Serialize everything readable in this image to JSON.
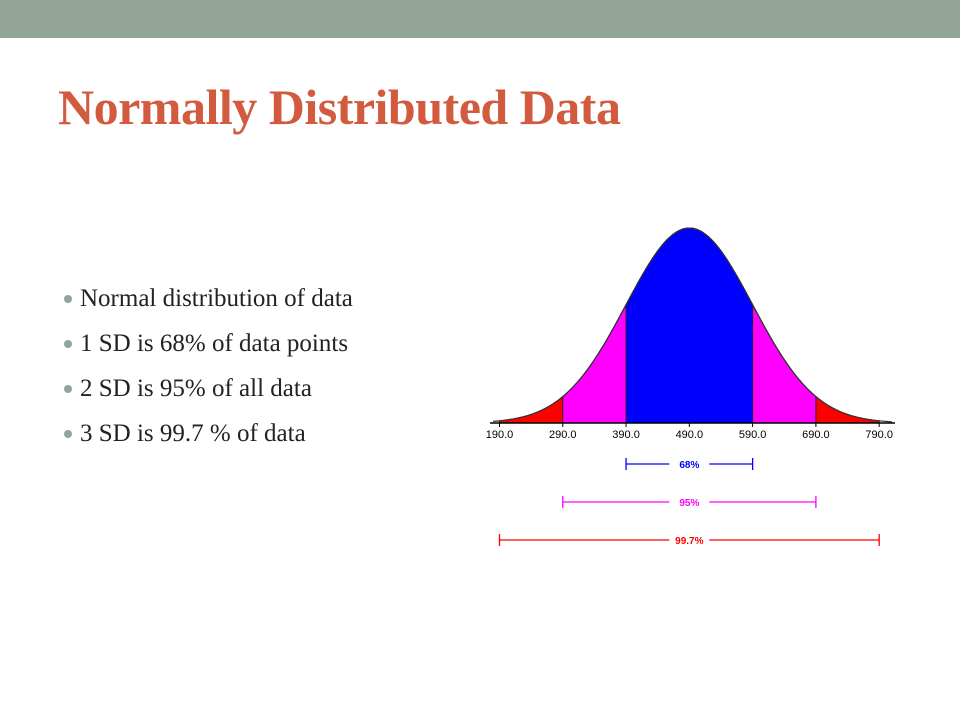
{
  "slide": {
    "title": "Normally Distributed Data",
    "bullets": [
      "Normal distribution of data",
      "1 SD is 68% of data points",
      "2 SD is 95% of all data",
      "3 SD is 99.7 % of data"
    ]
  },
  "chart_data": {
    "type": "normal",
    "xlim": [
      175,
      815
    ],
    "xticks": [
      {
        "value": 190,
        "label": "190.0"
      },
      {
        "value": 290,
        "label": "290.0"
      },
      {
        "value": 390,
        "label": "390.0"
      },
      {
        "value": 490,
        "label": "490.0"
      },
      {
        "value": 590,
        "label": "590.0"
      },
      {
        "value": 690,
        "label": "690.0"
      },
      {
        "value": 790,
        "label": "790.0"
      }
    ],
    "bands": [
      {
        "label": "68%",
        "value": 68,
        "range": [
          390,
          590
        ],
        "color": "#0000ff"
      },
      {
        "label": "95%",
        "value": 95,
        "range": [
          290,
          690
        ],
        "color": "#ff00ff"
      },
      {
        "label": "99.7%",
        "value": 99.7,
        "range": [
          190,
          790
        ],
        "color": "#ff0000"
      }
    ]
  }
}
